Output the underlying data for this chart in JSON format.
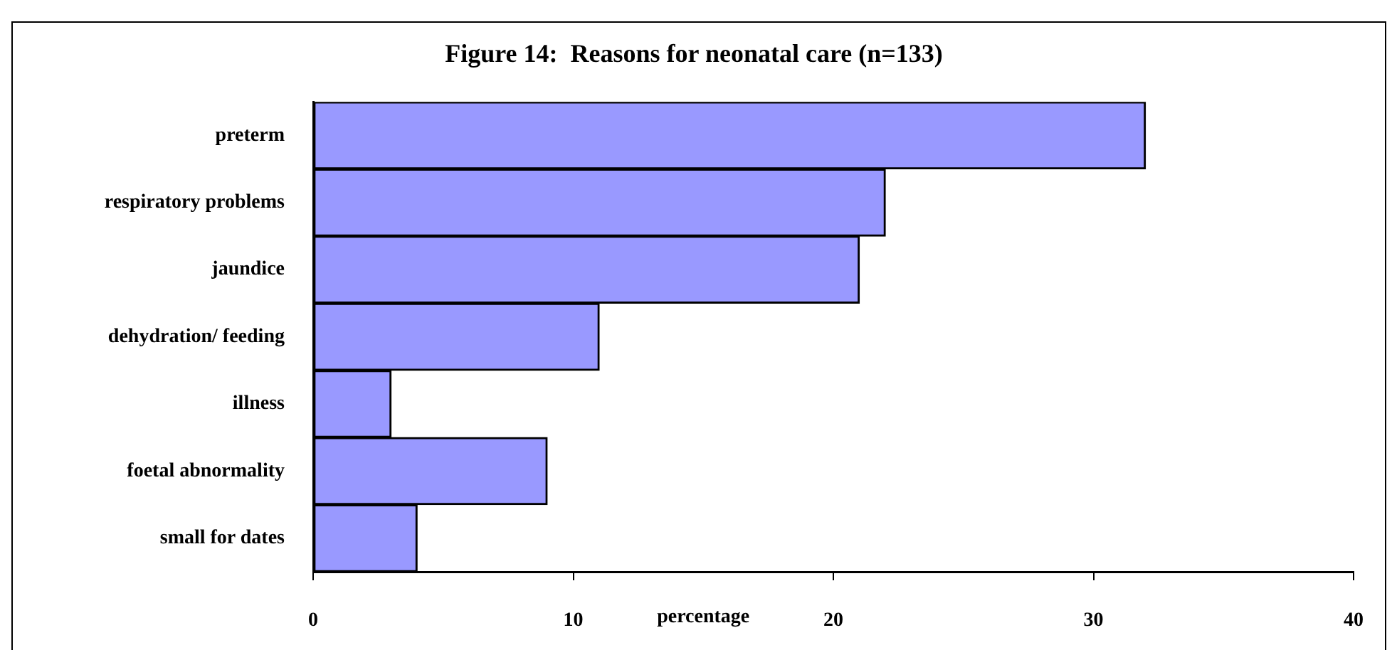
{
  "chart_data": {
    "type": "bar",
    "orientation": "horizontal",
    "title": "Figure 14:  Reasons for neonatal care (n=133)",
    "xlabel": "percentage",
    "categories": [
      "preterm",
      "respiratory problems",
      "jaundice",
      "dehydration/ feeding",
      "illness",
      "foetal abnormality",
      "small for dates"
    ],
    "values": [
      32,
      22,
      21,
      11,
      3,
      9,
      4
    ],
    "color": "#9999ff",
    "xlim": [
      0,
      40
    ],
    "xticks": [
      0,
      10,
      20,
      30,
      40
    ],
    "grid": false,
    "legend": false
  }
}
